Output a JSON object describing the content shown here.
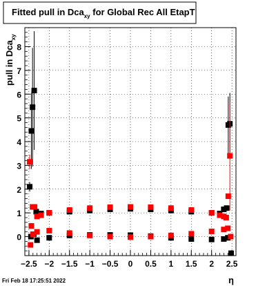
{
  "chart_data": {
    "type": "scatter",
    "title": "Fitted pull in Dca",
    "title_subscript": "xy",
    "title_suffix": " for Global Rec All EtapT",
    "ylabel": "pull in Dca",
    "ylabel_subscript": "xy",
    "xlabel": "η",
    "xlim": [
      -2.6,
      2.6
    ],
    "ylim": [
      -0.8,
      8.8
    ],
    "grid": true,
    "x_ticks": [
      -2.5,
      -2,
      -1.5,
      -1,
      -0.5,
      0,
      0.5,
      1,
      1.5,
      2,
      2.5
    ],
    "x_tick_labels": [
      "−2.5",
      "−2",
      "−1.5",
      "−1",
      "−0.5",
      "0",
      "0.5",
      "1",
      "1.5",
      "2",
      "2.5"
    ],
    "y_ticks": [
      0,
      1,
      2,
      3,
      4,
      5,
      6,
      7,
      8
    ],
    "y_tick_labels": [
      "0",
      "1",
      "2",
      "3",
      "4",
      "5",
      "6",
      "7",
      "8"
    ],
    "series": [
      {
        "color": "#000000",
        "marker": "square",
        "points": [
          {
            "x": -2.48,
            "y": 2.1,
            "err": 0.2
          },
          {
            "x": -2.44,
            "y": 4.45,
            "err": 1.6
          },
          {
            "x": -2.41,
            "y": 5.45,
            "err": 2.5
          },
          {
            "x": -2.37,
            "y": 6.15,
            "err": 2.5
          },
          {
            "x": -2.32,
            "y": 1.05,
            "err": 0.05
          },
          {
            "x": -2.28,
            "y": 0.95
          },
          {
            "x": -2.2,
            "y": 0.97
          },
          {
            "x": -2.0,
            "y": 1.0
          },
          {
            "x": -1.5,
            "y": 1.05
          },
          {
            "x": -1.0,
            "y": 1.1
          },
          {
            "x": -0.5,
            "y": 1.15
          },
          {
            "x": 0.0,
            "y": 1.17
          },
          {
            "x": 0.5,
            "y": 1.15
          },
          {
            "x": 1.0,
            "y": 1.1
          },
          {
            "x": 1.5,
            "y": 1.05
          },
          {
            "x": 2.0,
            "y": 1.0
          },
          {
            "x": 2.2,
            "y": 0.97
          },
          {
            "x": 2.3,
            "y": 1.15
          },
          {
            "x": 2.37,
            "y": 1.2
          },
          {
            "x": 2.41,
            "y": 4.7,
            "err": 1.2
          },
          {
            "x": 2.45,
            "y": 4.75,
            "err": 1.3
          },
          {
            "x": -2.45,
            "y": 0.0
          },
          {
            "x": -2.38,
            "y": 0.1
          },
          {
            "x": -2.3,
            "y": -0.15
          },
          {
            "x": -2.0,
            "y": -0.05
          },
          {
            "x": -1.5,
            "y": 0.05
          },
          {
            "x": -1.0,
            "y": 0.07
          },
          {
            "x": -0.5,
            "y": 0.07
          },
          {
            "x": 0.0,
            "y": 0.06
          },
          {
            "x": 0.5,
            "y": 0.02
          },
          {
            "x": 1.0,
            "y": -0.05
          },
          {
            "x": 1.5,
            "y": -0.1
          },
          {
            "x": 2.0,
            "y": -0.12
          },
          {
            "x": 2.3,
            "y": -0.1
          },
          {
            "x": 2.4,
            "y": -0.05
          },
          {
            "x": 2.48,
            "y": -0.7
          }
        ]
      },
      {
        "color": "#ff0000",
        "marker": "square",
        "points": [
          {
            "x": -2.48,
            "y": 3.15,
            "err": 0.3
          },
          {
            "x": -2.44,
            "y": 0.45
          },
          {
            "x": -2.41,
            "y": 1.25
          },
          {
            "x": -2.36,
            "y": 1.25
          },
          {
            "x": -2.3,
            "y": 0.85
          },
          {
            "x": -2.2,
            "y": 0.9
          },
          {
            "x": -2.0,
            "y": 1.0
          },
          {
            "x": -1.5,
            "y": 1.12
          },
          {
            "x": -1.0,
            "y": 1.2
          },
          {
            "x": -0.5,
            "y": 1.24
          },
          {
            "x": 0.0,
            "y": 1.25
          },
          {
            "x": 0.5,
            "y": 1.24
          },
          {
            "x": 1.0,
            "y": 1.2
          },
          {
            "x": 1.5,
            "y": 1.12
          },
          {
            "x": 2.0,
            "y": 1.0
          },
          {
            "x": 2.2,
            "y": 0.9
          },
          {
            "x": 2.3,
            "y": 0.85
          },
          {
            "x": 2.36,
            "y": 0.8
          },
          {
            "x": 2.41,
            "y": 1.7
          },
          {
            "x": 2.45,
            "y": 3.4,
            "err": 2.3
          },
          {
            "x": -2.46,
            "y": -0.35
          },
          {
            "x": -2.4,
            "y": 0.1
          },
          {
            "x": -2.3,
            "y": 0.2
          },
          {
            "x": -2.0,
            "y": 0.25
          },
          {
            "x": -1.5,
            "y": 0.15
          },
          {
            "x": -1.0,
            "y": 0.05
          },
          {
            "x": -0.5,
            "y": 0.0
          },
          {
            "x": 0.0,
            "y": -0.02
          },
          {
            "x": 0.5,
            "y": 0.0
          },
          {
            "x": 1.0,
            "y": 0.05
          },
          {
            "x": 1.5,
            "y": 0.12
          },
          {
            "x": 2.0,
            "y": 0.22
          },
          {
            "x": 2.3,
            "y": 0.3
          },
          {
            "x": 2.4,
            "y": 0.35
          },
          {
            "x": 2.47,
            "y": 0.0
          }
        ]
      }
    ]
  },
  "footer_timestamp": "Fri Feb 18 17:25:51 2022"
}
